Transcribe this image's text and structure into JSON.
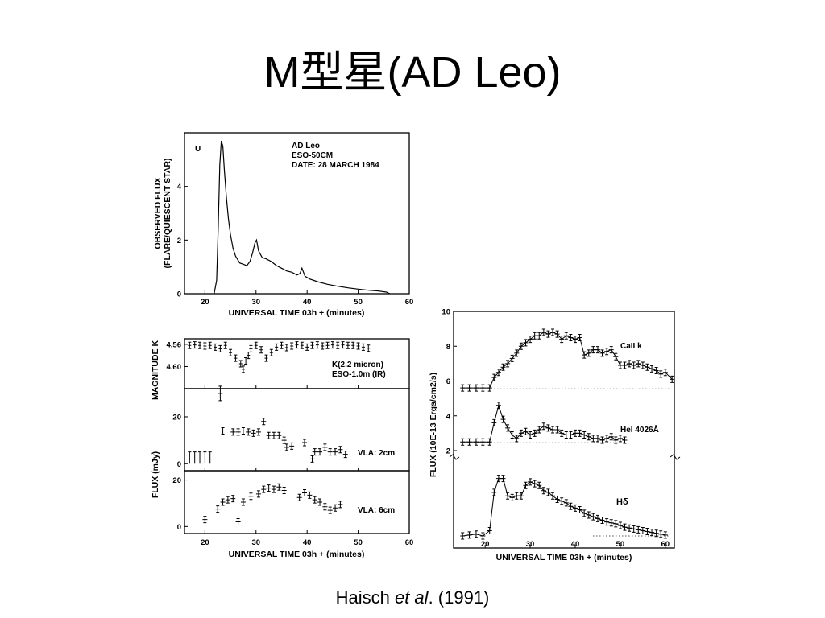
{
  "slide": {
    "title": "M型星(AD Leo)",
    "citation": {
      "author": "Haisch",
      "etal": "et al",
      "rest": ". (1991)"
    }
  },
  "colors": {
    "ink": "#000000",
    "background": "#ffffff"
  },
  "chart_data": [
    {
      "id": "u-band",
      "type": "line",
      "band_label": "U",
      "annotation": [
        "AD Leo",
        "ESO-50CM",
        "DATE: 28 MARCH 1984"
      ],
      "ylabel": [
        "OBSERVED FLUX",
        "(FLARE/QUIESCENT STAR)"
      ],
      "xlabel": "UNIVERSAL TIME 03h + (minutes)",
      "xlim": [
        16,
        60
      ],
      "ylim": [
        0,
        6
      ],
      "xticks": [
        20,
        30,
        40,
        50,
        60
      ],
      "yticks": [
        0,
        2,
        4
      ],
      "x": [
        21.8,
        22.3,
        22.6,
        22.9,
        23.2,
        23.5,
        23.8,
        24.2,
        24.6,
        25.0,
        25.5,
        26.0,
        26.8,
        27.5,
        28.2,
        28.8,
        29.3,
        29.8,
        30.1,
        30.5,
        31.2,
        32.0,
        33.0,
        34.0,
        35.0,
        36.0,
        37.0,
        38.0,
        38.6,
        39.0,
        39.6,
        40.5,
        42.0,
        44.0,
        46.0,
        48.0,
        50.0,
        52.0,
        54.0,
        55.5,
        56.2
      ],
      "y": [
        0,
        0.5,
        2.5,
        4.8,
        5.7,
        5.5,
        4.6,
        3.6,
        2.8,
        2.2,
        1.7,
        1.4,
        1.15,
        1.1,
        1.05,
        1.2,
        1.5,
        1.9,
        2.0,
        1.6,
        1.35,
        1.3,
        1.2,
        1.05,
        0.95,
        0.85,
        0.8,
        0.7,
        0.75,
        0.95,
        0.65,
        0.55,
        0.45,
        0.35,
        0.28,
        0.22,
        0.17,
        0.13,
        0.1,
        0.06,
        0.0
      ]
    },
    {
      "id": "k-mag",
      "type": "scatter",
      "ylabel": "MAGNITUDE K",
      "annotation": [
        "K(2.2 micron)",
        "ESO-1.0m (IR)"
      ],
      "xlim": [
        16,
        60
      ],
      "ylim": [
        4.55,
        4.64
      ],
      "yticks": [
        4.56,
        4.6
      ],
      "ytick_labels": [
        "4.56",
        "4.60"
      ],
      "x": [
        17,
        18,
        19,
        20,
        21,
        22,
        23,
        24,
        25,
        26,
        27,
        27.5,
        28,
        28.5,
        29,
        30,
        31,
        32,
        33,
        34,
        35,
        36,
        37,
        38,
        39,
        40,
        41,
        42,
        43,
        44,
        45,
        46,
        47,
        48,
        49,
        50,
        51,
        52
      ],
      "y": [
        4.562,
        4.561,
        4.562,
        4.563,
        4.562,
        4.565,
        4.568,
        4.562,
        4.575,
        4.585,
        4.595,
        4.605,
        4.59,
        4.58,
        4.568,
        4.562,
        4.57,
        4.585,
        4.575,
        4.565,
        4.562,
        4.566,
        4.563,
        4.561,
        4.562,
        4.565,
        4.562,
        4.561,
        4.563,
        4.562,
        4.561,
        4.562,
        4.561,
        4.562,
        4.562,
        4.563,
        4.565,
        4.567
      ]
    },
    {
      "id": "vla-2cm",
      "type": "scatter",
      "label": "VLA: 2cm",
      "xlim": [
        16,
        60
      ],
      "ylim": [
        -3,
        32
      ],
      "yticks": [
        0,
        20
      ],
      "upper_limits_x": [
        17,
        18,
        19,
        20,
        21
      ],
      "upper_limits_top": 5,
      "x": [
        23,
        23.5,
        25.5,
        26.5,
        27.5,
        28.5,
        29.5,
        30.5,
        31.5,
        32.5,
        33.5,
        34.5,
        35.5,
        36,
        37,
        39.5,
        41,
        41.5,
        42.5,
        43.5,
        44.5,
        45.5,
        46.5,
        47.5
      ],
      "y": [
        30,
        14,
        13.5,
        13.5,
        14,
        13.5,
        13,
        13.5,
        18,
        12,
        12,
        12,
        10,
        7,
        7.5,
        9,
        2,
        5,
        5,
        7,
        5,
        5,
        6,
        4
      ]
    },
    {
      "id": "vla-6cm",
      "type": "scatter",
      "label": "VLA: 6cm",
      "ylabel": "FLUX (mJy)",
      "xlabel": "UNIVERSAL TIME 03h + (minutes)",
      "xlim": [
        16,
        60
      ],
      "ylim": [
        -3,
        24
      ],
      "xticks": [
        20,
        30,
        40,
        50,
        60
      ],
      "yticks": [
        0,
        20
      ],
      "x": [
        20,
        22.5,
        23.5,
        24.5,
        25.5,
        26.5,
        27.5,
        29,
        30.5,
        31.5,
        32.5,
        33.5,
        34.5,
        35.5,
        38.5,
        39.5,
        40.5,
        41.5,
        42.5,
        43.5,
        44.5,
        45.5,
        46.5
      ],
      "y": [
        3,
        7.5,
        10.5,
        11.5,
        12,
        2,
        10.5,
        13,
        14,
        16,
        16.5,
        16,
        17,
        15.5,
        12.5,
        14.5,
        13.5,
        11.5,
        10.5,
        8.5,
        7,
        8,
        9.5
      ]
    },
    {
      "id": "optical-lines",
      "type": "line",
      "ylabel": "FLUX (10E-13 Ergs/cm2/s)",
      "xlabel": "UNIVERSAL TIME 03h + (minutes)",
      "xlim": [
        13,
        62
      ],
      "ylim": [
        2,
        10
      ],
      "xticks": [
        20,
        30,
        40,
        50,
        60
      ],
      "yticks": [
        2,
        4,
        6,
        8,
        10
      ],
      "series": [
        {
          "name": "CaII k",
          "x": [
            15,
            16.5,
            18,
            19.5,
            21,
            22,
            23,
            24,
            25,
            26,
            27,
            28,
            29,
            30,
            31,
            32,
            33,
            34,
            35,
            36,
            37,
            38,
            39,
            40,
            41,
            42,
            43,
            44,
            45,
            46,
            47,
            48,
            49,
            50,
            51,
            52,
            53,
            54,
            55,
            56,
            57,
            58,
            59,
            60,
            61.5
          ],
          "y": [
            5.6,
            5.6,
            5.6,
            5.6,
            5.6,
            6.2,
            6.5,
            6.8,
            7.0,
            7.3,
            7.6,
            8.0,
            8.2,
            8.4,
            8.6,
            8.6,
            8.8,
            8.7,
            8.8,
            8.7,
            8.4,
            8.6,
            8.5,
            8.4,
            8.5,
            7.5,
            7.6,
            7.8,
            7.8,
            7.6,
            7.7,
            7.8,
            7.4,
            6.9,
            6.9,
            7.0,
            6.9,
            7.0,
            6.9,
            6.8,
            6.7,
            6.6,
            6.4,
            6.5,
            6.1
          ]
        },
        {
          "name": "HeI 4026Å",
          "x": [
            15,
            16.5,
            18,
            19.5,
            21,
            22,
            23,
            24,
            25,
            26,
            27,
            28,
            29,
            30,
            31,
            32,
            33,
            34,
            35,
            36,
            37,
            38,
            39,
            40,
            41,
            42,
            43,
            44,
            45,
            46,
            47,
            48,
            49,
            50,
            51
          ],
          "y": [
            2.5,
            2.5,
            2.5,
            2.5,
            2.5,
            3.6,
            4.6,
            3.8,
            3.3,
            2.9,
            2.7,
            3.0,
            3.1,
            2.9,
            3.0,
            3.2,
            3.4,
            3.3,
            3.2,
            3.2,
            3.0,
            2.9,
            2.9,
            3.0,
            3.0,
            2.9,
            2.8,
            2.7,
            2.7,
            2.6,
            2.7,
            2.8,
            2.6,
            2.7,
            2.6
          ]
        },
        {
          "name": "Hδ",
          "x": [
            15,
            16.5,
            18,
            19.5,
            21,
            22,
            23,
            24,
            25,
            26,
            27,
            28,
            29,
            30,
            31,
            32,
            33,
            34,
            35,
            36,
            37,
            38,
            39,
            40,
            41,
            42,
            43,
            44,
            45,
            46,
            47,
            48,
            49,
            50,
            51,
            52,
            53,
            54,
            55,
            56,
            57,
            58,
            59,
            60
          ],
          "y": [
            -2.9,
            -2.85,
            -2.8,
            -2.9,
            -2.6,
            -0.4,
            0.4,
            0.4,
            -0.6,
            -0.7,
            -0.6,
            -0.6,
            0.0,
            0.2,
            0.1,
            0.0,
            -0.3,
            -0.4,
            -0.6,
            -0.8,
            -0.9,
            -1.0,
            -1.2,
            -1.3,
            -1.4,
            -1.6,
            -1.7,
            -1.8,
            -1.9,
            -2.0,
            -2.1,
            -2.15,
            -2.2,
            -2.3,
            -2.4,
            -2.45,
            -2.5,
            -2.55,
            -2.6,
            -2.65,
            -2.7,
            -2.75,
            -2.8,
            -2.85
          ]
        }
      ]
    }
  ]
}
